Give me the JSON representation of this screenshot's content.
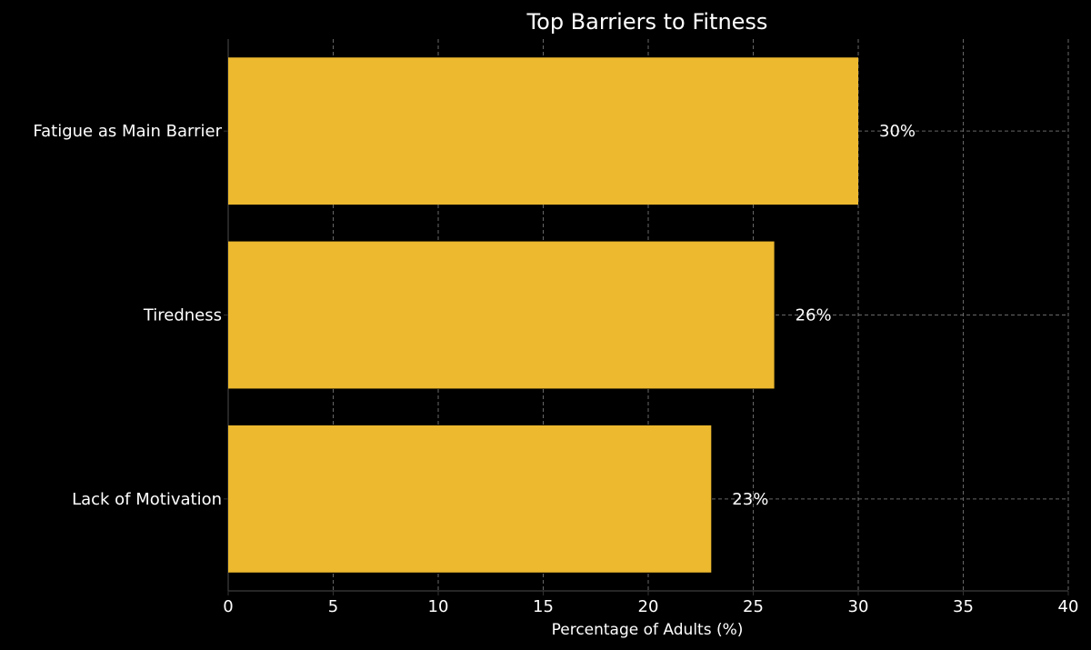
{
  "chart_data": {
    "type": "bar",
    "orientation": "horizontal",
    "title": "Top Barriers to Fitness",
    "xlabel": "Percentage of Adults (%)",
    "ylabel": "",
    "xlim": [
      0,
      40
    ],
    "x_ticks": [
      0,
      5,
      10,
      15,
      20,
      25,
      30,
      35,
      40
    ],
    "categories": [
      "Fatigue as Main Barrier",
      "Tiredness",
      "Lack of Motivation"
    ],
    "values": [
      30,
      26,
      23
    ],
    "value_labels": [
      "30%",
      "26%",
      "23%"
    ],
    "grid": true,
    "colors": {
      "background": "#000000",
      "bar": "#ecb92f",
      "grid": "#7a7a7a",
      "text": "#ffffff",
      "axis": "#333333"
    }
  }
}
